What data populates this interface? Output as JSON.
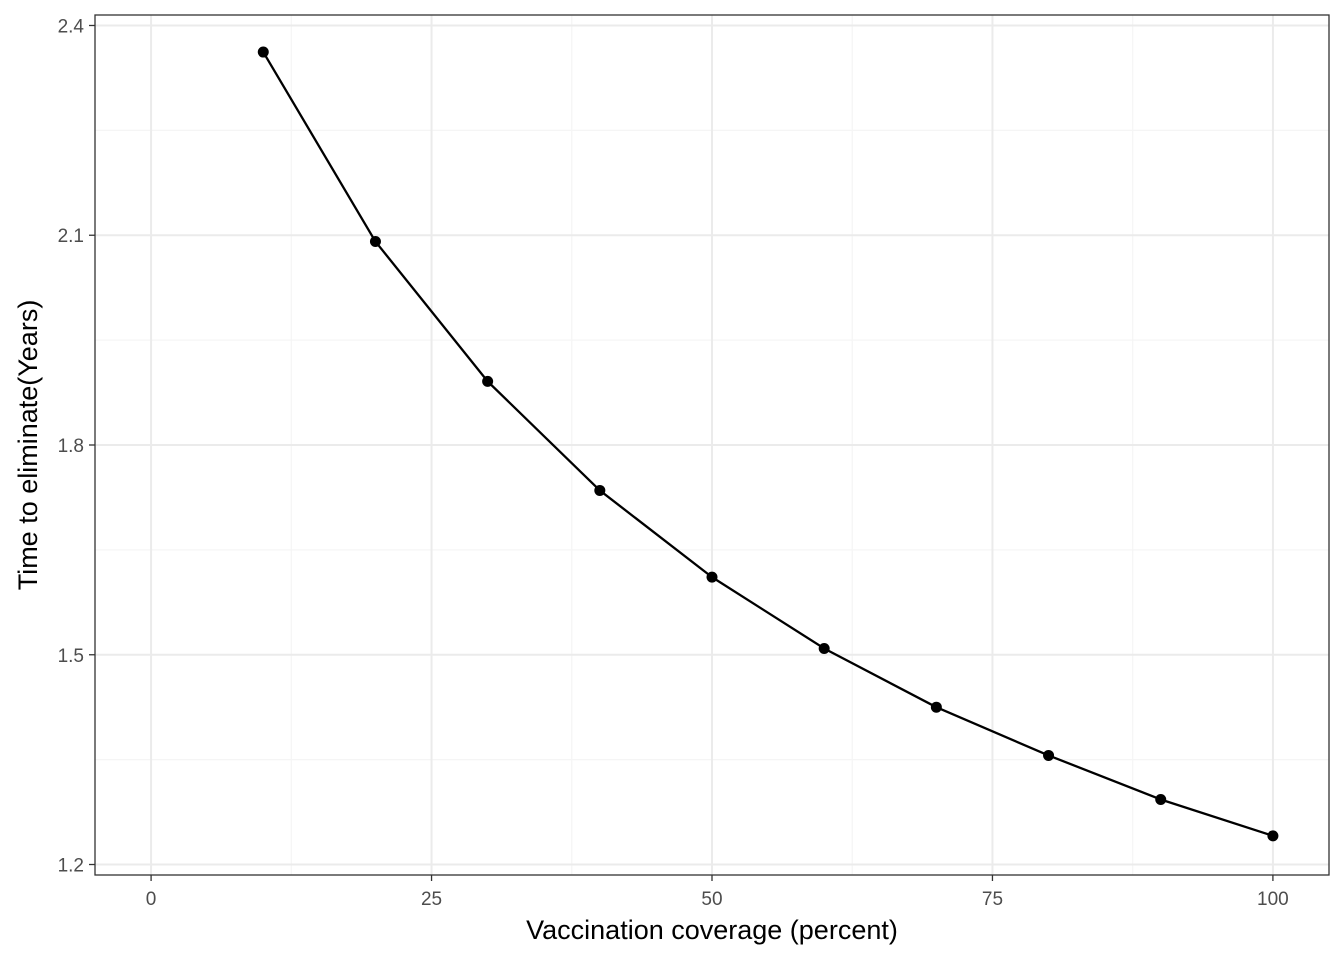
{
  "chart_data": {
    "type": "line",
    "title": "",
    "xlabel": "Vaccination coverage (percent)",
    "ylabel": "Time to eliminate(Years)",
    "x": [
      10,
      20,
      30,
      40,
      50,
      60,
      70,
      80,
      90,
      100
    ],
    "series": [
      {
        "values": [
          2.362,
          2.091,
          1.891,
          1.735,
          1.611,
          1.509,
          1.425,
          1.356,
          1.293,
          1.241
        ]
      }
    ],
    "xlim": [
      -5,
      105
    ],
    "ylim": [
      1.185,
      2.415
    ],
    "x_ticks": [
      0,
      25,
      50,
      75,
      100
    ],
    "x_tick_labels": [
      "0",
      "25",
      "50",
      "75",
      "100"
    ],
    "y_ticks": [
      1.2,
      1.5,
      1.8,
      2.1,
      2.4
    ],
    "y_tick_labels": [
      "1.2",
      "1.5",
      "1.8",
      "2.1",
      "2.4"
    ],
    "grid": true,
    "legend": "none",
    "colors": {
      "line": "#000000",
      "points": "#000000",
      "grid_major": "#ebebeb",
      "grid_minor": "#f5f5f5",
      "panel_border": "#333333",
      "tick_text": "#4d4d4d"
    }
  }
}
